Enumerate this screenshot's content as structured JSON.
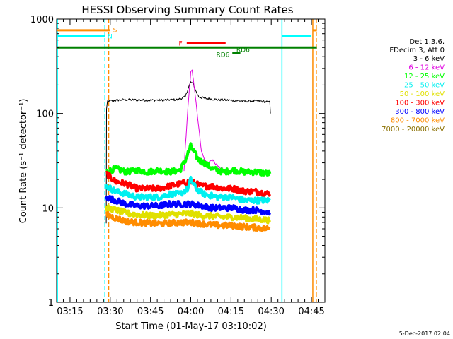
{
  "chart_data": {
    "type": "line",
    "title": "HESSI Observing Summary Count Rates",
    "xlabel": "Start Time (01-May-17 03:10:02)",
    "ylabel": "Count Rate (s⁻¹ detector⁻¹)",
    "y_scale": "log",
    "ylim": [
      1,
      1000
    ],
    "xlim_minutes": [
      190,
      290
    ],
    "x_ticks": [
      {
        "min": 195,
        "label": "03:15"
      },
      {
        "min": 210,
        "label": "03:30"
      },
      {
        "min": 225,
        "label": "03:45"
      },
      {
        "min": 240,
        "label": "04:00"
      },
      {
        "min": 255,
        "label": "04:15"
      },
      {
        "min": 270,
        "label": "04:30"
      },
      {
        "min": 285,
        "label": "04:45"
      }
    ],
    "y_ticks": [
      {
        "value": 1,
        "label": "1"
      },
      {
        "value": 10,
        "label": "10"
      },
      {
        "value": 100,
        "label": "100"
      },
      {
        "value": 1000,
        "label": "1000"
      }
    ],
    "legend": {
      "position": "right",
      "header": [
        "Det 1,3,6,",
        "FDecim 3, Att 0"
      ],
      "entries": [
        {
          "label": "3 - 6 keV",
          "color": "#000000"
        },
        {
          "label": "6 - 12 keV",
          "color": "#e000e0"
        },
        {
          "label": "12 - 25 keV",
          "color": "#00ff00"
        },
        {
          "label": "25 - 50 keV",
          "color": "#00f0f0"
        },
        {
          "label": "50 - 100 keV",
          "color": "#e0e000"
        },
        {
          "label": "100 - 300 keV",
          "color": "#ff0000"
        },
        {
          "label": "300 - 800 keV",
          "color": "#0000ff"
        },
        {
          "label": "800 - 7000 keV",
          "color": "#ff8c00"
        },
        {
          "label": "7000 - 20000 keV",
          "color": "#8b7000"
        }
      ]
    },
    "series": [
      {
        "band": "3 - 6 keV",
        "color": "#000000",
        "width": 1,
        "points": [
          [
            208.5,
            6.8
          ],
          [
            208.6,
            110
          ],
          [
            209,
            135
          ],
          [
            215,
            140
          ],
          [
            225,
            138
          ],
          [
            235,
            140
          ],
          [
            238,
            150
          ],
          [
            239,
            185
          ],
          [
            240,
            215
          ],
          [
            241,
            205
          ],
          [
            242,
            170
          ],
          [
            243,
            150
          ],
          [
            245,
            145
          ],
          [
            250,
            140
          ],
          [
            255,
            138
          ],
          [
            260,
            135
          ],
          [
            265,
            136
          ],
          [
            269.5,
            132
          ],
          [
            269.7,
            100
          ]
        ]
      },
      {
        "band": "6 - 12 keV",
        "color": "#e000e0",
        "width": 1,
        "points": [
          [
            237.5,
            25
          ],
          [
            238,
            45
          ],
          [
            239,
            120
          ],
          [
            240,
            270
          ],
          [
            240.5,
            285
          ],
          [
            241,
            230
          ],
          [
            242,
            130
          ],
          [
            243,
            70
          ],
          [
            244,
            40
          ],
          [
            245,
            33
          ],
          [
            246,
            30
          ],
          [
            248,
            32
          ],
          [
            250,
            28
          ],
          [
            251,
            26
          ],
          [
            252,
            27
          ]
        ]
      },
      {
        "band": "12 - 25 keV",
        "color": "#00ff00",
        "width": 4,
        "points": [
          [
            208.5,
            24
          ],
          [
            212,
            26
          ],
          [
            216,
            24
          ],
          [
            220,
            25
          ],
          [
            224,
            24
          ],
          [
            228,
            25
          ],
          [
            232,
            24
          ],
          [
            236,
            25
          ],
          [
            238,
            32
          ],
          [
            240,
            45
          ],
          [
            241,
            40
          ],
          [
            243,
            32
          ],
          [
            245,
            30
          ],
          [
            248,
            26
          ],
          [
            252,
            24
          ],
          [
            256,
            25
          ],
          [
            260,
            24
          ],
          [
            264,
            24
          ],
          [
            269.5,
            23
          ]
        ]
      },
      {
        "band": "100 - 300 keV",
        "color": "#ff0000",
        "width": 4,
        "points": [
          [
            208.5,
            23
          ],
          [
            212,
            19
          ],
          [
            216,
            18
          ],
          [
            220,
            16
          ],
          [
            224,
            16
          ],
          [
            228,
            16
          ],
          [
            232,
            17
          ],
          [
            236,
            18
          ],
          [
            240,
            19
          ],
          [
            244,
            17
          ],
          [
            248,
            17
          ],
          [
            252,
            16
          ],
          [
            256,
            16
          ],
          [
            260,
            15
          ],
          [
            264,
            15
          ],
          [
            269.5,
            14
          ]
        ]
      },
      {
        "band": "25 - 50 keV",
        "color": "#00f0f0",
        "width": 4,
        "points": [
          [
            208.5,
            17
          ],
          [
            212,
            15
          ],
          [
            216,
            14
          ],
          [
            220,
            13
          ],
          [
            224,
            13
          ],
          [
            228,
            13
          ],
          [
            232,
            14
          ],
          [
            236,
            14
          ],
          [
            239,
            16
          ],
          [
            240,
            20
          ],
          [
            242,
            16
          ],
          [
            245,
            14
          ],
          [
            250,
            13
          ],
          [
            255,
            13
          ],
          [
            260,
            12
          ],
          [
            265,
            12
          ],
          [
            269.5,
            12
          ]
        ]
      },
      {
        "band": "300 - 800 keV",
        "color": "#0000ff",
        "width": 4,
        "points": [
          [
            208.5,
            13
          ],
          [
            212,
            12
          ],
          [
            216,
            11
          ],
          [
            220,
            10.5
          ],
          [
            224,
            10.5
          ],
          [
            228,
            10.5
          ],
          [
            232,
            11
          ],
          [
            236,
            11
          ],
          [
            240,
            11
          ],
          [
            244,
            10.5
          ],
          [
            248,
            10
          ],
          [
            252,
            10
          ],
          [
            256,
            10
          ],
          [
            260,
            9.5
          ],
          [
            264,
            9.5
          ],
          [
            269.5,
            9
          ]
        ]
      },
      {
        "band": "50 - 100 keV",
        "color": "#e0e000",
        "width": 4,
        "points": [
          [
            208.5,
            10
          ],
          [
            212,
            9.5
          ],
          [
            216,
            8.8
          ],
          [
            220,
            8.5
          ],
          [
            224,
            8.3
          ],
          [
            228,
            8.3
          ],
          [
            232,
            8.5
          ],
          [
            236,
            8.6
          ],
          [
            240,
            8.7
          ],
          [
            244,
            8.3
          ],
          [
            248,
            8.2
          ],
          [
            252,
            8
          ],
          [
            256,
            8
          ],
          [
            260,
            7.8
          ],
          [
            264,
            7.6
          ],
          [
            269.5,
            7.4
          ]
        ]
      },
      {
        "band": "800 - 7000 keV",
        "color": "#ff8c00",
        "width": 4,
        "points": [
          [
            208.5,
            8.5
          ],
          [
            212,
            7.8
          ],
          [
            216,
            7.2
          ],
          [
            220,
            7
          ],
          [
            224,
            6.9
          ],
          [
            228,
            6.8
          ],
          [
            232,
            6.9
          ],
          [
            236,
            7
          ],
          [
            240,
            7
          ],
          [
            244,
            6.8
          ],
          [
            248,
            6.6
          ],
          [
            252,
            6.5
          ],
          [
            256,
            6.5
          ],
          [
            260,
            6.3
          ],
          [
            264,
            6.2
          ],
          [
            269.5,
            6
          ]
        ]
      }
    ],
    "flags": {
      "segments": [
        {
          "id": "saa",
          "color": "#ff8c00",
          "x0": 190,
          "x1": 210,
          "y": 760,
          "width": 3
        },
        {
          "id": "saa-right",
          "color": "#ff8c00",
          "x0": 285.5,
          "x1": 287,
          "y": 760,
          "width": 3
        },
        {
          "id": "night-left",
          "color": "#00ffff",
          "x0": 190,
          "x1": 208,
          "y": 665,
          "width": 3
        },
        {
          "id": "night-right",
          "color": "#00ffff",
          "x0": 274,
          "x1": 285,
          "y": 665,
          "width": 3
        },
        {
          "id": "flare",
          "color": "#ff0000",
          "x0": 238.5,
          "x1": 253,
          "y": 560,
          "width": 3
        },
        {
          "id": "rd6-long",
          "color": "#008000",
          "x0": 190,
          "x1": 287,
          "y": 500,
          "width": 3
        },
        {
          "id": "rd6-short",
          "color": "#008000",
          "x0": 255.5,
          "x1": 258.5,
          "y": 440,
          "width": 3
        }
      ],
      "labels": [
        {
          "text": "S",
          "color": "#ff8c00",
          "x": 211,
          "y": 780
        },
        {
          "text": "N",
          "color": "#00ffff",
          "x": 209,
          "y": 665
        },
        {
          "text": "F",
          "color": "#ff0000",
          "x": 235.5,
          "y": 560
        },
        {
          "text": "RD6",
          "color": "#008000",
          "x": 257,
          "y": 480
        },
        {
          "text": "RD6",
          "color": "#008000",
          "x": 249.5,
          "y": 425
        }
      ],
      "vlines": [
        {
          "color": "#00ffff",
          "x": 190.3,
          "dashed": false
        },
        {
          "color": "#00ffff",
          "x": 208.0,
          "dashed": true
        },
        {
          "color": "#ff8c00",
          "x": 209.4,
          "dashed": true
        },
        {
          "color": "#00ffff",
          "x": 274.0,
          "dashed": false
        },
        {
          "color": "#ff8c00",
          "x": 285.5,
          "dashed": false
        },
        {
          "color": "#ff8c00",
          "x": 286.8,
          "dashed": true
        }
      ]
    }
  },
  "footer": {
    "date_stamp": "5-Dec-2017 02:04"
  }
}
